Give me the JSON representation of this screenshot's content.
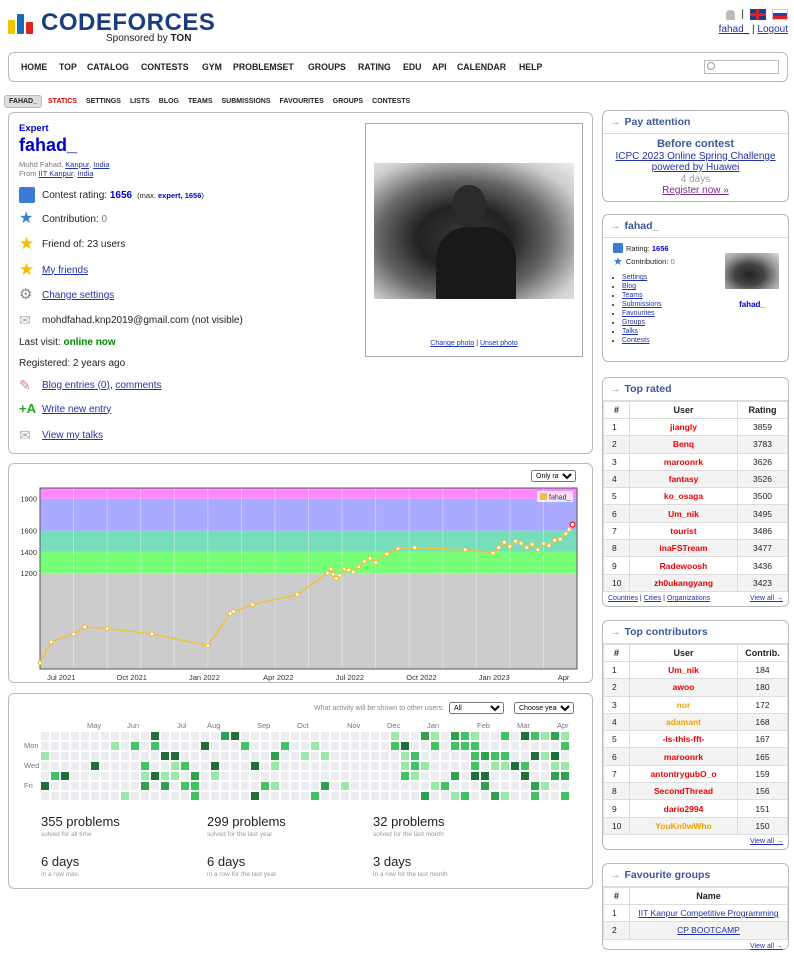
{
  "header": {
    "logo_word": "CODEFORCES",
    "sponsored_prefix": "Sponsored by",
    "sponsor": "TON",
    "user_link": "fahad_",
    "logout": "Logout",
    "separator": "|"
  },
  "menu": [
    "HOME",
    "TOP",
    "CATALOG",
    "CONTESTS",
    "GYM",
    "PROBLEMSET",
    "GROUPS",
    "RATING",
    "EDU",
    "API",
    "CALENDAR",
    "HELP"
  ],
  "submenu": [
    "FAHAD_",
    "STATICS",
    "SETTINGS",
    "LISTS",
    "BLOG",
    "TEAMS",
    "SUBMISSIONS",
    "FAVOURITES",
    "GROUPS",
    "CONTESTS"
  ],
  "profile": {
    "rank": "Expert",
    "handle": "fahad_",
    "name_line": "Mohd Fahad,",
    "city": "Kanpur",
    "country": "India",
    "from_prefix": "From",
    "org": "IIT Kanpur",
    "org_country": "India",
    "rating_label": "Contest rating:",
    "rating": "1656",
    "max_prefix": "(max.",
    "max_rank": "expert,",
    "max_rating": "1656",
    "max_suffix": ")",
    "contribution_label": "Contribution:",
    "contribution": "0",
    "friend_of": "Friend of: 23 users",
    "my_friends": "My friends",
    "change_settings": "Change settings",
    "email": "mohdfahad.knp2019@gmail.com (not visible)",
    "last_visit_label": "Last visit:",
    "last_visit": "online now",
    "registered": "Registered: 2 years ago",
    "blog_entries": "Blog entries (0)",
    "comments": "comments",
    "write_new": "Write new entry",
    "view_talks": "View my talks",
    "change_photo": "Change photo",
    "unset_photo": "Unset photo"
  },
  "rating_chart": {
    "select": "Only rated",
    "legend": "fahad_",
    "y_ticks": [
      "1900",
      "1600",
      "1400",
      "1200"
    ],
    "x_ticks": [
      "Jul 2021",
      "Oct 2021",
      "Jan 2022",
      "Apr 2022",
      "Jul 2022",
      "Oct 2022",
      "Jan 2023",
      "Apr 2023"
    ]
  },
  "chart_data": {
    "type": "line",
    "series": [
      {
        "name": "fahad_",
        "x": [
          0,
          1,
          3,
          4,
          6,
          10,
          15,
          17,
          17.3,
          19,
          23,
          25.7,
          26,
          26.2,
          26.5,
          26.8,
          27.2,
          27.6,
          28,
          28.5,
          29,
          29.5,
          30,
          31,
          32,
          33.5,
          38,
          40.5,
          41,
          41.5,
          42,
          42.5,
          43,
          43.5,
          44,
          44.5,
          45,
          45.5,
          46,
          46.5,
          47,
          47.3,
          47.6
        ],
        "y": [
          358,
          555,
          628,
          695,
          680,
          630,
          520,
          820,
          840,
          905,
          1000,
          1200,
          1240,
          1190,
          1150,
          1180,
          1240,
          1230,
          1210,
          1260,
          1310,
          1340,
          1300,
          1380,
          1430,
          1440,
          1420,
          1390,
          1440,
          1490,
          1450,
          1500,
          1480,
          1440,
          1470,
          1420,
          1480,
          1460,
          1510,
          1520,
          1570,
          1610,
          1656
        ]
      }
    ],
    "ylim": [
      300,
      2000
    ],
    "bands": [
      {
        "from": 300,
        "to": 1200,
        "color": "#cccccc"
      },
      {
        "from": 1200,
        "to": 1400,
        "color": "#77ff77"
      },
      {
        "from": 1400,
        "to": 1600,
        "color": "#77ddbb"
      },
      {
        "from": 1600,
        "to": 1900,
        "color": "#aaaaff"
      },
      {
        "from": 1900,
        "to": 2000,
        "color": "#ff88ff"
      }
    ]
  },
  "activity": {
    "visibility_label": "What activity will be shown to other users:",
    "visibility_value": "All",
    "year_select": "Choose year",
    "months": [
      "May",
      "Jun",
      "Jul",
      "Aug",
      "Sep",
      "Oct",
      "Nov",
      "Dec",
      "Jan",
      "Feb",
      "Mar",
      "Apr"
    ],
    "days": [
      "Mon",
      "Wed",
      "Fri"
    ],
    "stats": [
      {
        "big": "355 problems",
        "small": "solved for all time"
      },
      {
        "big": "299 problems",
        "small": "solved for the last year"
      },
      {
        "big": "32 problems",
        "small": "solved for the last month"
      },
      {
        "big": "6 days",
        "small": "in a row max."
      },
      {
        "big": "6 days",
        "small": "in a row for the last year"
      },
      {
        "big": "3 days",
        "small": "in a row for the last month"
      }
    ]
  },
  "pay_attention": {
    "title": "Pay attention",
    "before": "Before contest",
    "contest_line1": "ICPC 2023 Online Spring Challenge",
    "contest_line2": "powered by Huawei",
    "days": "4 days",
    "register": "Register now »"
  },
  "side_user": {
    "title": "fahad_",
    "rating_label": "Rating:",
    "rating": "1656",
    "contribution_label": "Contribution:",
    "contribution": "0",
    "links": [
      "Settings",
      "Blog",
      "Teams",
      "Submissions",
      "Favourites",
      "Groups",
      "Talks",
      "Contests"
    ],
    "handle": "fahad_"
  },
  "top_rated": {
    "title": "Top rated",
    "headers": [
      "#",
      "User",
      "Rating"
    ],
    "rows": [
      {
        "n": "1",
        "u": "jiangly",
        "v": "3859"
      },
      {
        "n": "2",
        "u": "Benq",
        "v": "3783"
      },
      {
        "n": "3",
        "u": "maroonrk",
        "v": "3626"
      },
      {
        "n": "4",
        "u": "fantasy",
        "v": "3526"
      },
      {
        "n": "5",
        "u": "ko_osaga",
        "v": "3500"
      },
      {
        "n": "6",
        "u": "Um_nik",
        "v": "3495"
      },
      {
        "n": "7",
        "u": "tourist",
        "v": "3486"
      },
      {
        "n": "8",
        "u": "inaFSTream",
        "v": "3477"
      },
      {
        "n": "9",
        "u": "Radewoosh",
        "v": "3436"
      },
      {
        "n": "10",
        "u": "zh0ukangyang",
        "v": "3423"
      }
    ],
    "foot_links": [
      "Countries",
      "Cities",
      "Organizations"
    ],
    "view_all": "View all →"
  },
  "top_contributors": {
    "title": "Top contributors",
    "headers": [
      "#",
      "User",
      "Contrib."
    ],
    "rows": [
      {
        "n": "1",
        "u": "Um_nik",
        "v": "184",
        "c": "red"
      },
      {
        "n": "2",
        "u": "awoo",
        "v": "180",
        "c": "red"
      },
      {
        "n": "3",
        "u": "nor",
        "v": "172",
        "c": "orange"
      },
      {
        "n": "4",
        "u": "adamant",
        "v": "168",
        "c": "orange"
      },
      {
        "n": "5",
        "u": "-is-this-fft-",
        "v": "167",
        "c": "red"
      },
      {
        "n": "6",
        "u": "maroonrk",
        "v": "165",
        "c": "red"
      },
      {
        "n": "7",
        "u": "antontrygubO_o",
        "v": "159",
        "c": "red"
      },
      {
        "n": "8",
        "u": "SecondThread",
        "v": "156",
        "c": "red"
      },
      {
        "n": "9",
        "u": "dario2994",
        "v": "151",
        "c": "red"
      },
      {
        "n": "10",
        "u": "YouKn0wWho",
        "v": "150",
        "c": "orange"
      }
    ],
    "view_all": "View all →"
  },
  "fav_groups": {
    "title": "Favourite groups",
    "headers": [
      "#",
      "Name"
    ],
    "rows": [
      {
        "n": "1",
        "name": "IIT Kanpur Competitive Programming"
      },
      {
        "n": "2",
        "name": "CP BOOTCAMP"
      }
    ],
    "view_all": "View all →"
  },
  "colors": {
    "accent": "#3b5998",
    "expert": "#0000cc",
    "red": "#ee0000",
    "orange": "#f0a000",
    "online": "#008800"
  }
}
